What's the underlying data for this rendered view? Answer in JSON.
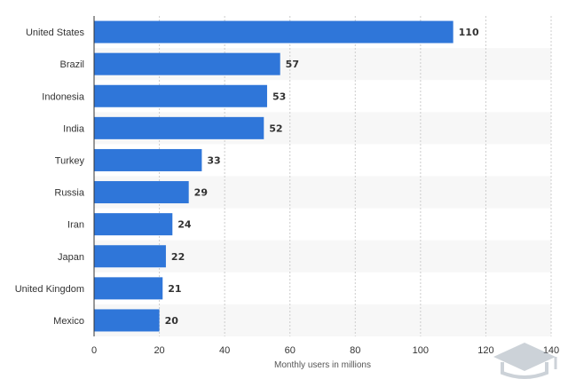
{
  "chart_data": {
    "type": "bar",
    "orientation": "horizontal",
    "categories": [
      "United States",
      "Brazil",
      "Indonesia",
      "India",
      "Turkey",
      "Russia",
      "Iran",
      "Japan",
      "United Kingdom",
      "Mexico"
    ],
    "values": [
      110,
      57,
      53,
      52,
      33,
      29,
      24,
      22,
      21,
      20
    ],
    "xlabel": "Monthly users in millions",
    "ylabel": "",
    "xlim": [
      0,
      140
    ],
    "xticks": [
      0,
      20,
      40,
      60,
      80,
      100,
      120,
      140
    ],
    "grid": "vertical dashed",
    "bar_color": "#2f76d9",
    "alt_row_color": "#f7f7f7",
    "grid_color": "#cccccc"
  }
}
